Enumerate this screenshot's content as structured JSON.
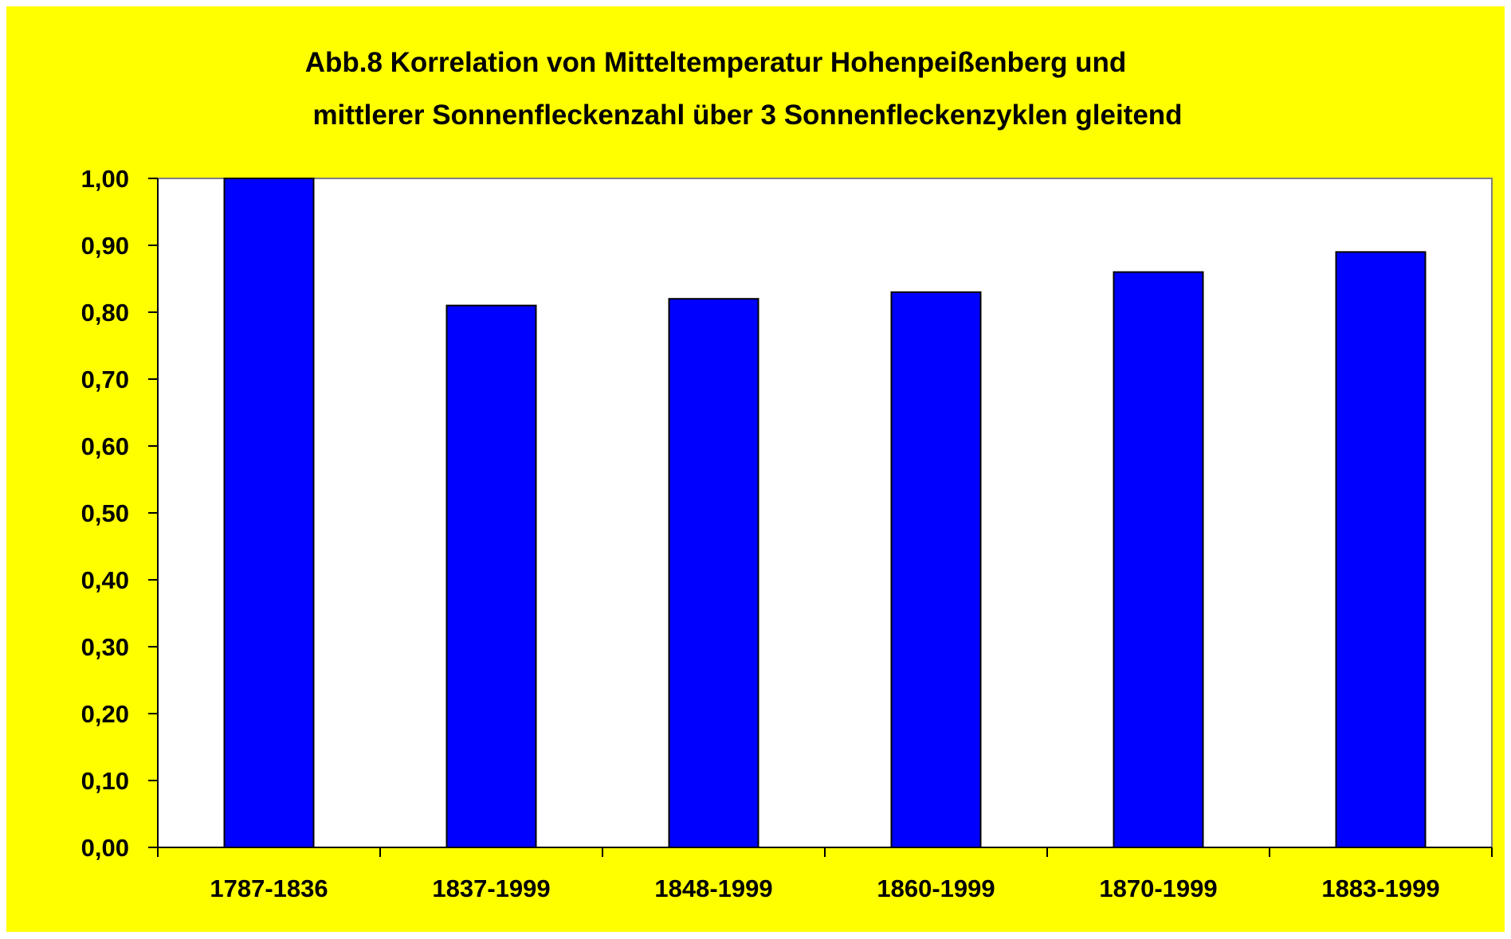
{
  "chart_data": {
    "type": "bar",
    "title_lines": [
      "Abb.8 Korrelation von Mitteltemperatur Hohenpeißenberg und",
      "mittlerer Sonnenfleckenzahl über 3 Sonnenfleckenzyklen gleitend"
    ],
    "categories": [
      "1787-1836",
      "1837-1999",
      "1848-1999",
      "1860-1999",
      "1870-1999",
      "1883-1999"
    ],
    "values": [
      1.0,
      0.81,
      0.82,
      0.83,
      0.86,
      0.89
    ],
    "xlabel": "",
    "ylabel": "",
    "ylim": [
      0,
      1
    ],
    "yticks": [
      "0,00",
      "0,10",
      "0,20",
      "0,30",
      "0,40",
      "0,50",
      "0,60",
      "0,70",
      "0,80",
      "0,90",
      "1,00"
    ],
    "grid": false,
    "legend": "none",
    "colors": {
      "bar": "#0000ff",
      "bar_outline": "#000000",
      "background": "#ffff00",
      "plot_area": "#ffffff"
    }
  }
}
